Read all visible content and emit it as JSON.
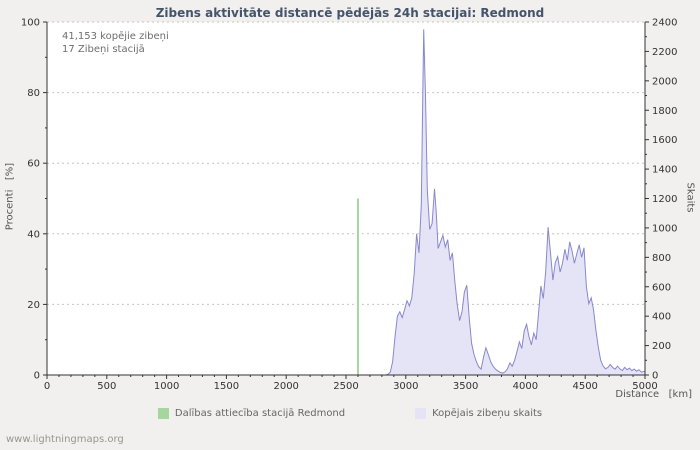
{
  "page": {
    "title": "Zibens aktivitāte distancē pēdējās 24h stacijai: Redmond",
    "footer": "www.lightningmaps.org"
  },
  "annotations": {
    "total_strikes": "41,153 kopējie zibeņi",
    "station_strikes": "17 Zibeņi stacijā"
  },
  "legend": [
    {
      "label": "Dalības attiecība stacijā Redmond",
      "color": "#a6d6a0"
    },
    {
      "label": "Kopējais zibeņu skaits",
      "color": "#e4e4f6"
    }
  ],
  "colors": {
    "title": "#44546a",
    "plot_bg": "#ffffff",
    "grid": "#c6c6c6",
    "axis": "#333333",
    "tick_text": "#333333",
    "area_fill": "#e4e4f6",
    "area_stroke": "#8888cc",
    "green_line": "#a6d6a0"
  },
  "chart_data": {
    "type": "area",
    "title": "Zibens aktivitāte distancē pēdējās 24h stacijai: Redmond",
    "xlabel": "Distance   [km]",
    "ylabel_left": "Procenti   [%]",
    "ylabel_right": "Skaits",
    "xlim": [
      0,
      5000
    ],
    "ylim_left": [
      0,
      100
    ],
    "ylim_right": [
      0,
      2400
    ],
    "x_ticks": [
      0,
      500,
      1000,
      1500,
      2000,
      2500,
      3000,
      3500,
      4000,
      4500,
      5000
    ],
    "left_ticks": [
      0,
      20,
      40,
      60,
      80,
      100
    ],
    "right_ticks": [
      0,
      200,
      400,
      600,
      800,
      1000,
      1200,
      1400,
      1600,
      1800,
      2000,
      2200,
      2400
    ],
    "grid": "horizontal-dotted",
    "legend_position": "bottom",
    "station_ratio_bar": {
      "x": 2600,
      "percent": 50,
      "name": "Dalības attiecība stacijā Redmond"
    },
    "series": [
      {
        "name": "Kopējais zibeņu skaits",
        "axis": "right",
        "points": [
          [
            0,
            0
          ],
          [
            2800,
            0
          ],
          [
            2830,
            0
          ],
          [
            2850,
            5
          ],
          [
            2870,
            20
          ],
          [
            2890,
            90
          ],
          [
            2910,
            260
          ],
          [
            2930,
            400
          ],
          [
            2950,
            430
          ],
          [
            2970,
            390
          ],
          [
            2990,
            445
          ],
          [
            3010,
            505
          ],
          [
            3030,
            470
          ],
          [
            3050,
            525
          ],
          [
            3070,
            690
          ],
          [
            3090,
            960
          ],
          [
            3110,
            830
          ],
          [
            3130,
            1160
          ],
          [
            3150,
            2350
          ],
          [
            3165,
            1900
          ],
          [
            3180,
            1260
          ],
          [
            3200,
            990
          ],
          [
            3220,
            1030
          ],
          [
            3240,
            1265
          ],
          [
            3255,
            1100
          ],
          [
            3270,
            860
          ],
          [
            3290,
            905
          ],
          [
            3310,
            950
          ],
          [
            3330,
            870
          ],
          [
            3350,
            920
          ],
          [
            3370,
            780
          ],
          [
            3390,
            830
          ],
          [
            3410,
            640
          ],
          [
            3430,
            480
          ],
          [
            3450,
            370
          ],
          [
            3470,
            430
          ],
          [
            3490,
            565
          ],
          [
            3510,
            610
          ],
          [
            3530,
            390
          ],
          [
            3550,
            215
          ],
          [
            3570,
            140
          ],
          [
            3590,
            90
          ],
          [
            3610,
            55
          ],
          [
            3630,
            40
          ],
          [
            3650,
            120
          ],
          [
            3670,
            185
          ],
          [
            3690,
            140
          ],
          [
            3710,
            90
          ],
          [
            3730,
            60
          ],
          [
            3750,
            40
          ],
          [
            3770,
            28
          ],
          [
            3790,
            18
          ],
          [
            3810,
            12
          ],
          [
            3830,
            22
          ],
          [
            3850,
            42
          ],
          [
            3870,
            82
          ],
          [
            3890,
            60
          ],
          [
            3910,
            100
          ],
          [
            3930,
            160
          ],
          [
            3950,
            225
          ],
          [
            3970,
            180
          ],
          [
            3990,
            300
          ],
          [
            4010,
            345
          ],
          [
            4030,
            260
          ],
          [
            4050,
            205
          ],
          [
            4070,
            285
          ],
          [
            4090,
            240
          ],
          [
            4110,
            425
          ],
          [
            4130,
            605
          ],
          [
            4150,
            520
          ],
          [
            4170,
            705
          ],
          [
            4190,
            1005
          ],
          [
            4210,
            830
          ],
          [
            4230,
            645
          ],
          [
            4250,
            765
          ],
          [
            4270,
            805
          ],
          [
            4290,
            700
          ],
          [
            4310,
            760
          ],
          [
            4330,
            855
          ],
          [
            4350,
            780
          ],
          [
            4370,
            905
          ],
          [
            4390,
            845
          ],
          [
            4410,
            760
          ],
          [
            4430,
            825
          ],
          [
            4450,
            885
          ],
          [
            4470,
            800
          ],
          [
            4490,
            865
          ],
          [
            4510,
            600
          ],
          [
            4530,
            485
          ],
          [
            4550,
            525
          ],
          [
            4570,
            440
          ],
          [
            4590,
            300
          ],
          [
            4610,
            185
          ],
          [
            4630,
            100
          ],
          [
            4650,
            62
          ],
          [
            4670,
            42
          ],
          [
            4690,
            52
          ],
          [
            4710,
            72
          ],
          [
            4730,
            50
          ],
          [
            4750,
            40
          ],
          [
            4770,
            60
          ],
          [
            4790,
            42
          ],
          [
            4810,
            30
          ],
          [
            4830,
            52
          ],
          [
            4850,
            36
          ],
          [
            4870,
            46
          ],
          [
            4890,
            30
          ],
          [
            4910,
            40
          ],
          [
            4930,
            26
          ],
          [
            4950,
            36
          ],
          [
            4970,
            20
          ],
          [
            5000,
            26
          ]
        ]
      }
    ]
  }
}
